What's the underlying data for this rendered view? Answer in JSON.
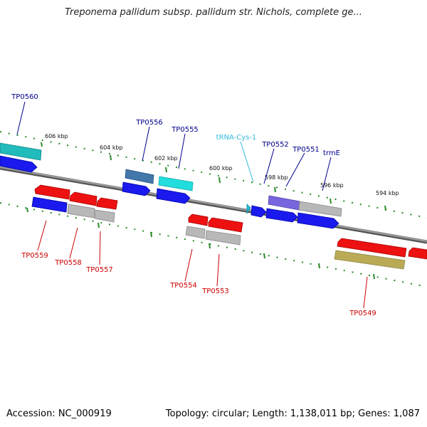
{
  "title": "Treponema pallidum subsp. pallidum str. Nichols, complete ge...",
  "footer": {
    "accession": "Accession: NC_000919",
    "summary": "Topology: circular; Length: 1,138,011 bp; Genes: 1,087"
  },
  "colors": {
    "backbone": "#7a7a7a",
    "kbp_ticks": "#2a8a2a",
    "forward_label": "#00008b",
    "reverse_label": "#cc0000",
    "trna_label": "#33bbdd",
    "cds_blue": "#1a1aee",
    "cds_red": "#ee1111",
    "gray": "#b8b8b8",
    "cyan": "#22dddd",
    "teal": "#22bbbb",
    "steel": "#4477aa",
    "purple": "#7766dd",
    "olive": "#bbaa55"
  },
  "kbp_labels": [
    "606 kbp",
    "604 kbp",
    "602 kbp",
    "600 kbp",
    "598 kbp",
    "596 kbp",
    "594 kbp"
  ],
  "forward_genes": [
    "TP0560",
    "TP0556",
    "TP0555",
    "tRNA-Cys-1",
    "TP0552",
    "TP0551",
    "trmE"
  ],
  "reverse_genes": [
    "TP0559",
    "TP0558",
    "TP0557",
    "TP0554",
    "TP0553",
    "TP0549"
  ]
}
